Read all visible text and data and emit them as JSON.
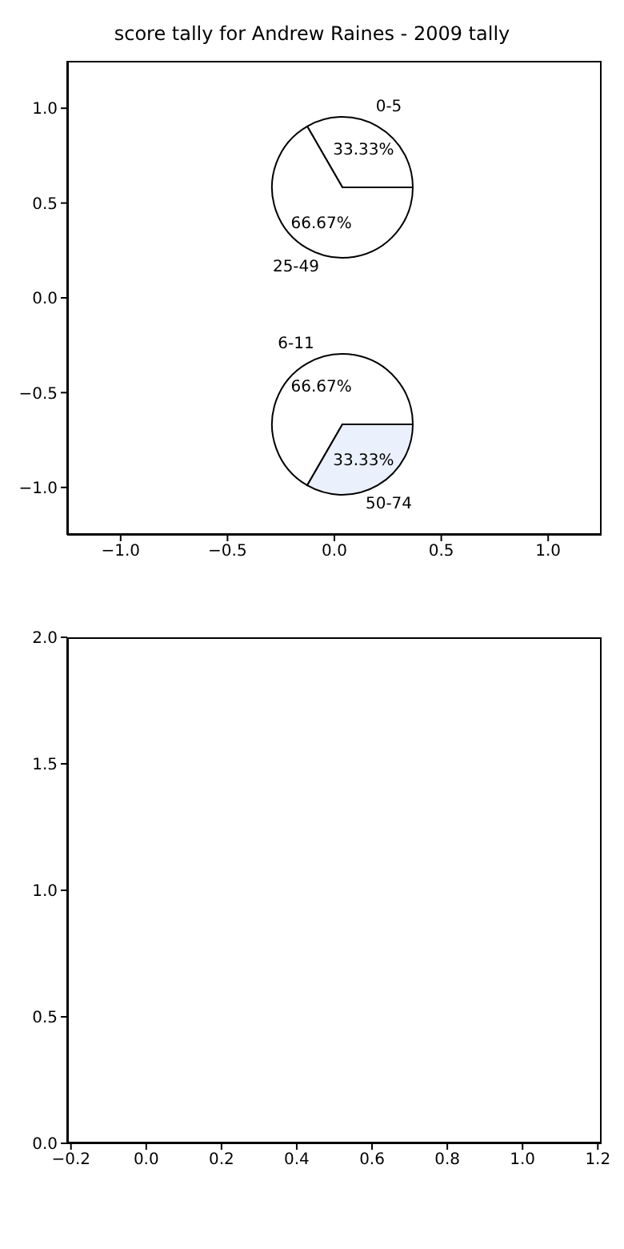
{
  "chart_data": [
    {
      "type": "scatter",
      "title": "score tally for Andrew Raines - 2009 tally",
      "xlim": [
        -1.25,
        1.25
      ],
      "ylim": [
        -1.25,
        1.25
      ],
      "xticks": [
        {
          "value": -1,
          "label": "−1.0"
        },
        {
          "value": -0.5,
          "label": "−0.5"
        },
        {
          "value": 0,
          "label": "0.0"
        },
        {
          "value": 0.5,
          "label": "0.5"
        },
        {
          "value": 1,
          "label": "1.0"
        }
      ],
      "yticks": [
        {
          "value": -1,
          "label": "−1.0"
        },
        {
          "value": -0.5,
          "label": "−0.5"
        },
        {
          "value": 0,
          "label": "0.0"
        },
        {
          "value": 0.5,
          "label": "0.5"
        },
        {
          "value": 1,
          "label": "1.0"
        }
      ]
    },
    {
      "type": "pie",
      "categories": [
        "0-5",
        "25-49"
      ],
      "values": [
        33.33,
        66.67
      ],
      "colors": [
        "#ffffff",
        "#ffffff"
      ],
      "value_labels": [
        "33.33%",
        "66.67%"
      ]
    },
    {
      "type": "pie",
      "categories": [
        "6-11",
        "50-74"
      ],
      "values": [
        66.67,
        33.33
      ],
      "colors": [
        "#ffffff",
        "#eaf0fc"
      ],
      "value_labels": [
        "66.67%",
        "33.33%"
      ]
    },
    {
      "type": "scatter",
      "xlim": [
        -0.21,
        1.21
      ],
      "ylim": [
        0,
        2
      ],
      "xticks": [
        {
          "value": -0.2,
          "label": "−0.2"
        },
        {
          "value": 0,
          "label": "0.0"
        },
        {
          "value": 0.2,
          "label": "0.2"
        },
        {
          "value": 0.4,
          "label": "0.4"
        },
        {
          "value": 0.6,
          "label": "0.6"
        },
        {
          "value": 0.8,
          "label": "0.8"
        },
        {
          "value": 1,
          "label": "1.0"
        },
        {
          "value": 1.2,
          "label": "1.2"
        }
      ],
      "yticks": [
        {
          "value": 0,
          "label": "0.0"
        },
        {
          "value": 0.5,
          "label": "0.5"
        },
        {
          "value": 1,
          "label": "1.0"
        },
        {
          "value": 1.5,
          "label": "1.5"
        },
        {
          "value": 2,
          "label": "2.0"
        }
      ]
    }
  ]
}
